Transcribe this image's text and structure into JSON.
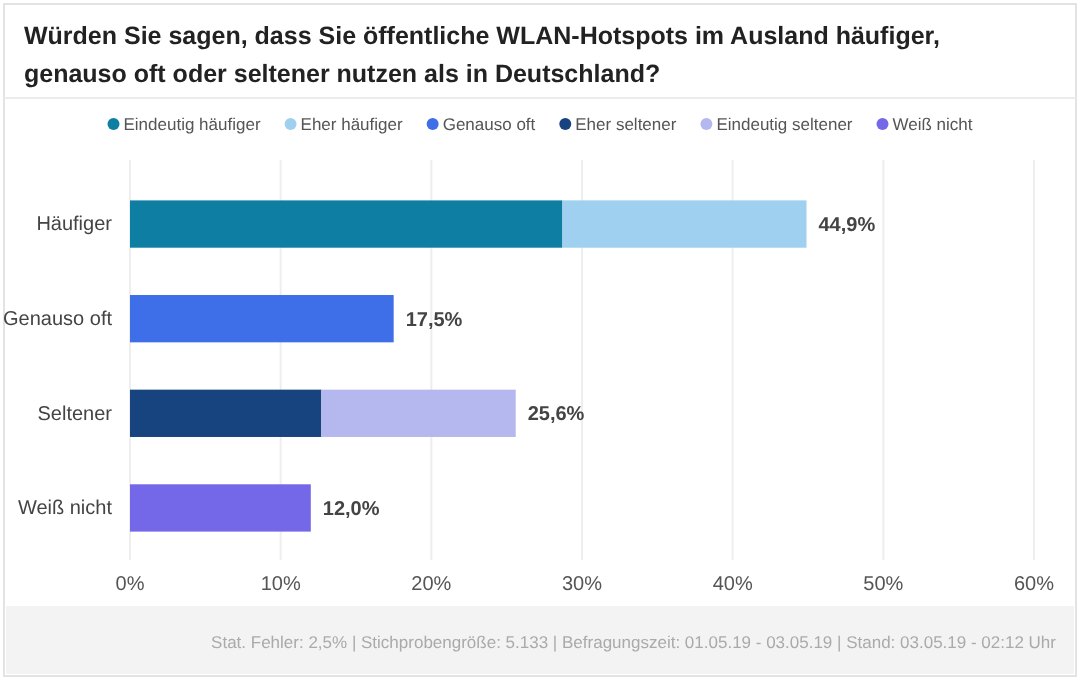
{
  "chart_data": {
    "type": "bar",
    "orientation": "horizontal",
    "stacked": true,
    "title": "Würden Sie sagen, dass Sie öffentliche WLAN-Hotspots im Ausland häufiger, genauso oft oder seltener nutzen als in Deutschland?",
    "categories": [
      "Häufiger",
      "Genauso oft",
      "Seltener",
      "Weiß nicht"
    ],
    "series": [
      {
        "name": "Eindeutig häufiger",
        "color": "#0e7ea3",
        "values": [
          28.7,
          null,
          null,
          null
        ]
      },
      {
        "name": "Eher häufiger",
        "color": "#9fd0ef",
        "values": [
          16.2,
          null,
          null,
          null
        ]
      },
      {
        "name": "Genauso oft",
        "color": "#3e6ee8",
        "values": [
          null,
          17.5,
          null,
          null
        ]
      },
      {
        "name": "Eher seltener",
        "color": "#17437f",
        "values": [
          null,
          null,
          12.7,
          null
        ]
      },
      {
        "name": "Eindeutig seltener",
        "color": "#b5b8ee",
        "values": [
          null,
          null,
          12.9,
          null
        ]
      },
      {
        "name": "Weiß nicht",
        "color": "#7568e8",
        "values": [
          null,
          null,
          null,
          12.0
        ]
      }
    ],
    "totals": [
      "44,9%",
      "17,5%",
      "25,6%",
      "12,0%"
    ],
    "xlim": [
      0,
      60
    ],
    "xticks": [
      {
        "value": 0,
        "label": "0%"
      },
      {
        "value": 10,
        "label": "10%"
      },
      {
        "value": 20,
        "label": "20%"
      },
      {
        "value": 30,
        "label": "30%"
      },
      {
        "value": 40,
        "label": "40%"
      },
      {
        "value": 50,
        "label": "50%"
      },
      {
        "value": 60,
        "label": "60%"
      }
    ],
    "grid": "x",
    "legend": "top",
    "annotations": [
      "Stat. Fehler: 2,5% | Stichprobengröße: 5.133 | Befragungszeit: 01.05.19 - 03.05.19 | Stand: 03.05.19 - 02:12 Uhr"
    ]
  }
}
